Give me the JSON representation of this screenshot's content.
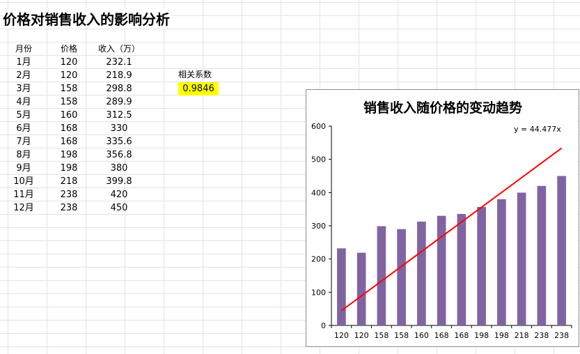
{
  "sheet": {
    "title": "价格对销售收入的影响分析",
    "headers": [
      "月份",
      "价格",
      "收入（万）"
    ],
    "rows": [
      [
        "1月",
        "120",
        "232.1"
      ],
      [
        "2月",
        "120",
        "218.9"
      ],
      [
        "3月",
        "158",
        "298.8"
      ],
      [
        "4月",
        "158",
        "289.9"
      ],
      [
        "5月",
        "160",
        "312.5"
      ],
      [
        "6月",
        "168",
        "330"
      ],
      [
        "7月",
        "168",
        "335.6"
      ],
      [
        "8月",
        "198",
        "356.8"
      ],
      [
        "9月",
        "198",
        "380"
      ],
      [
        "10月",
        "218",
        "399.8"
      ],
      [
        "11月",
        "238",
        "420"
      ],
      [
        "12月",
        "238",
        "450"
      ]
    ],
    "correlation_label": "相关系数",
    "correlation_value": "0.9846",
    "highlight_color": "#ffff00"
  },
  "chart_data": {
    "type": "bar",
    "title": "销售收入随价格的变动趋势",
    "categories": [
      "120",
      "120",
      "158",
      "158",
      "160",
      "168",
      "168",
      "198",
      "198",
      "218",
      "238",
      "238"
    ],
    "values": [
      232.1,
      218.9,
      298.8,
      289.9,
      312.5,
      330,
      335.6,
      356.8,
      380,
      399.8,
      420,
      450
    ],
    "ylim": [
      0,
      600
    ],
    "yticks": [
      0,
      100,
      200,
      300,
      400,
      500,
      600
    ],
    "bar_color": "#8064a2",
    "trendline": {
      "equation": "y = 44.477x",
      "slope": 44.477,
      "color": "#ff0000"
    },
    "grid": false,
    "legend": "none"
  }
}
